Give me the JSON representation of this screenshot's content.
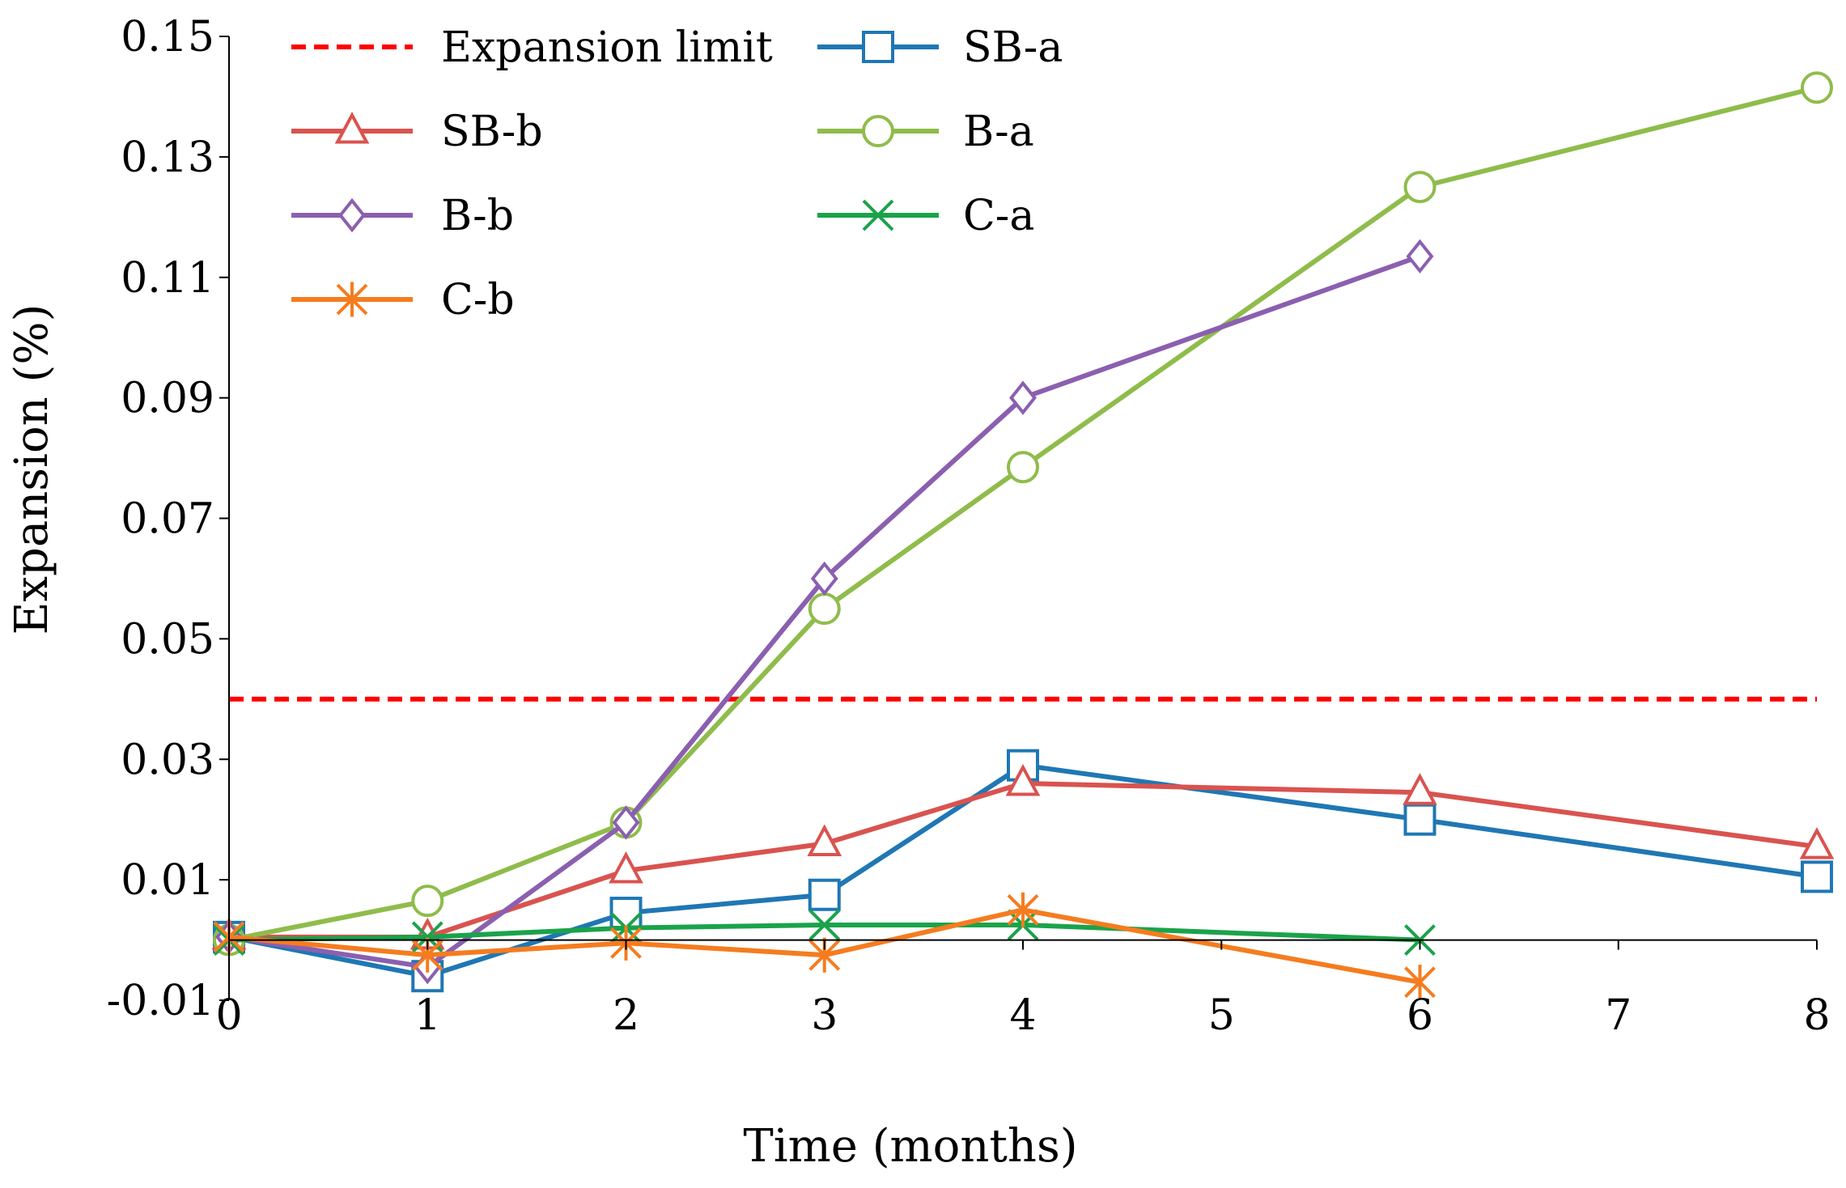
{
  "chart_data": {
    "type": "line",
    "xlabel": "Time (months)",
    "ylabel": "Expansion (%)",
    "xlim": [
      0,
      8
    ],
    "ylim": [
      -0.01,
      0.15
    ],
    "x_ticks": [
      0,
      1,
      2,
      3,
      4,
      5,
      6,
      7,
      8
    ],
    "x_tick_labels": [
      "0",
      "1",
      "2",
      "3",
      "4",
      "5",
      "6",
      "7",
      "8"
    ],
    "y_ticks": [
      -0.01,
      0.01,
      0.03,
      0.05,
      0.07,
      0.09,
      0.11,
      0.13,
      0.15
    ],
    "y_tick_labels": [
      "-0.01",
      "0.01",
      "0.03",
      "0.05",
      "0.07",
      "0.09",
      "0.11",
      "0.13",
      "0.15"
    ],
    "grid": false,
    "legend_position": "top-left",
    "reference_lines": [
      {
        "name": "Expansion limit",
        "y": 0.04,
        "color": "#ff0000",
        "style": "dashed"
      }
    ],
    "series": [
      {
        "name": "SB-a",
        "color": "#1f77b4",
        "marker": "square",
        "x": [
          0,
          1,
          2,
          3,
          4,
          6,
          8
        ],
        "values": [
          0.0005,
          -0.006,
          0.0045,
          0.0075,
          0.029,
          0.02,
          0.0105
        ]
      },
      {
        "name": "SB-b",
        "color": "#d9534f",
        "marker": "triangle",
        "x": [
          0,
          1,
          2,
          3,
          4,
          6,
          8
        ],
        "values": [
          0.0005,
          0.0005,
          0.0115,
          0.016,
          0.026,
          0.0245,
          0.0155
        ]
      },
      {
        "name": "B-a",
        "color": "#8fbc4b",
        "marker": "circle",
        "x": [
          0,
          1,
          2,
          3,
          4,
          6,
          8
        ],
        "values": [
          0.0,
          0.0065,
          0.0195,
          0.055,
          0.0785,
          0.125,
          0.1415
        ]
      },
      {
        "name": "B-b",
        "color": "#8b5fb0",
        "marker": "diamond",
        "x": [
          0,
          1,
          2,
          3,
          4,
          6
        ],
        "values": [
          0.0005,
          -0.0045,
          0.0195,
          0.06,
          0.09,
          0.1135
        ]
      },
      {
        "name": "C-a",
        "color": "#1aa34a",
        "marker": "x",
        "x": [
          0,
          1,
          2,
          3,
          4,
          6
        ],
        "values": [
          0.0,
          0.0005,
          0.002,
          0.0025,
          0.0025,
          0.0
        ]
      },
      {
        "name": "C-b",
        "color": "#f57c1f",
        "marker": "asterisk",
        "x": [
          0,
          1,
          2,
          3,
          4,
          6
        ],
        "values": [
          0.0005,
          -0.0025,
          -0.0005,
          -0.0025,
          0.005,
          -0.007
        ]
      }
    ]
  }
}
